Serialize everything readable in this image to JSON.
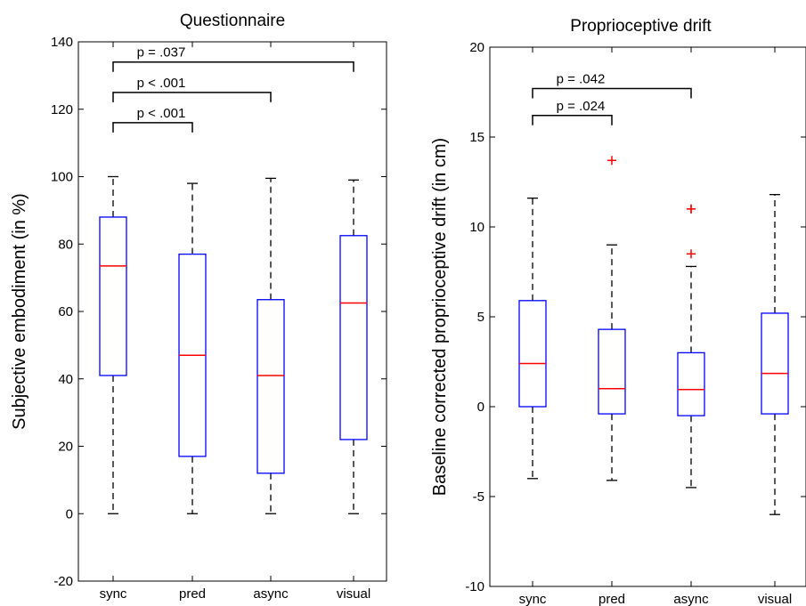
{
  "chart_data": [
    {
      "type": "box",
      "title": "Questionnaire",
      "xlabel": "",
      "ylabel": "Subjective embodiment (in %)",
      "ylim": [
        -20,
        140
      ],
      "yticks": [
        -20,
        0,
        20,
        40,
        60,
        80,
        100,
        120,
        140
      ],
      "categories": [
        "sync",
        "pred",
        "async",
        "visual"
      ],
      "boxes": [
        {
          "category": "sync",
          "min": 0,
          "q1": 41,
          "median": 73.5,
          "q3": 88,
          "max": 100,
          "outliers": []
        },
        {
          "category": "pred",
          "min": 0,
          "q1": 17,
          "median": 47,
          "q3": 77,
          "max": 98,
          "outliers": []
        },
        {
          "category": "async",
          "min": 0,
          "q1": 12,
          "median": 41,
          "q3": 63.5,
          "max": 99.5,
          "outliers": []
        },
        {
          "category": "visual",
          "min": 0,
          "q1": 22,
          "median": 62.5,
          "q3": 82.5,
          "max": 99,
          "outliers": []
        }
      ],
      "comparisons": [
        {
          "from": "sync",
          "to": "pred",
          "label": "p < .001",
          "y": 116
        },
        {
          "from": "sync",
          "to": "async",
          "label": "p < .001",
          "y": 125
        },
        {
          "from": "sync",
          "to": "visual",
          "label": "p = .037",
          "y": 134
        }
      ]
    },
    {
      "type": "box",
      "title": "Proprioceptive drift",
      "xlabel": "",
      "ylabel": "Baseline corrected proprioceptive drift (in cm)",
      "ylim": [
        -10,
        20
      ],
      "yticks": [
        -10,
        -5,
        0,
        5,
        10,
        15,
        20
      ],
      "categories": [
        "sync",
        "pred",
        "async",
        "visual"
      ],
      "boxes": [
        {
          "category": "sync",
          "min": -4,
          "q1": 0,
          "median": 2.4,
          "q3": 5.9,
          "max": 11.6,
          "outliers": []
        },
        {
          "category": "pred",
          "min": -4.1,
          "q1": -0.4,
          "median": 1,
          "q3": 4.3,
          "max": 9,
          "outliers": [
            13.7
          ]
        },
        {
          "category": "async",
          "min": -4.5,
          "q1": -0.5,
          "median": 0.95,
          "q3": 3,
          "max": 7.8,
          "outliers": [
            8.5,
            11,
            11
          ]
        },
        {
          "category": "visual",
          "min": -6,
          "q1": -0.4,
          "median": 1.85,
          "q3": 5.2,
          "max": 11.8,
          "outliers": []
        }
      ],
      "comparisons": [
        {
          "from": "sync",
          "to": "pred",
          "label": "p = .024",
          "y": 16.2
        },
        {
          "from": "sync",
          "to": "async",
          "label": "p = .042",
          "y": 17.7
        }
      ]
    }
  ],
  "colors": {
    "box": "#0000ff",
    "median": "#ff0000",
    "outlier": "#ff0000",
    "whisker": "#000000"
  }
}
